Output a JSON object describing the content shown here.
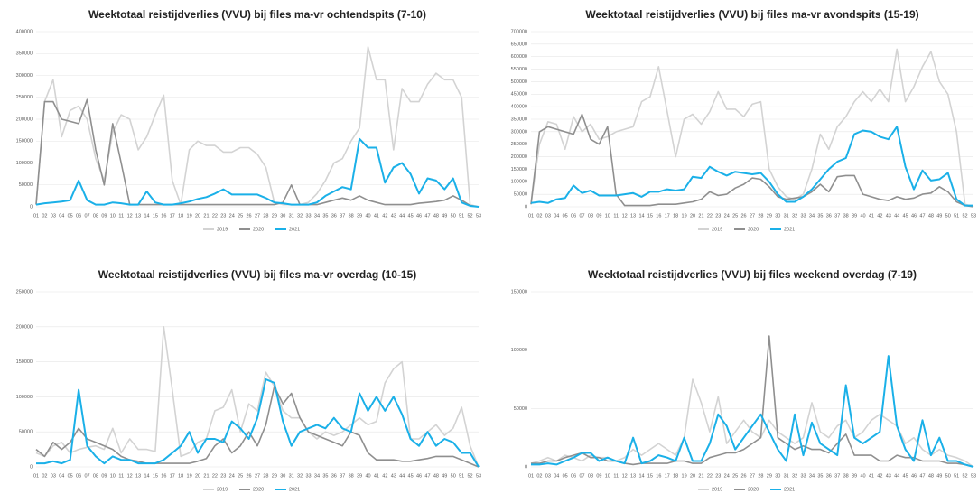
{
  "chart_data": [
    {
      "type": "line",
      "title": "Weektotaal reistijdverlies (VVU) bij files ma-vr ochtendspits (7-10)",
      "categories": [
        "01",
        "02",
        "03",
        "04",
        "05",
        "06",
        "07",
        "08",
        "09",
        "10",
        "11",
        "12",
        "13",
        "14",
        "15",
        "16",
        "17",
        "18",
        "19",
        "20",
        "21",
        "22",
        "23",
        "24",
        "25",
        "26",
        "27",
        "28",
        "29",
        "30",
        "31",
        "32",
        "33",
        "34",
        "35",
        "36",
        "37",
        "38",
        "39",
        "40",
        "41",
        "42",
        "43",
        "44",
        "45",
        "46",
        "47",
        "48",
        "49",
        "50",
        "51",
        "52",
        "53"
      ],
      "series": [
        {
          "name": "2019",
          "color": "#d3d3d3",
          "values": [
            5000,
            240000,
            290000,
            160000,
            220000,
            230000,
            200000,
            110000,
            60000,
            170000,
            210000,
            200000,
            130000,
            160000,
            210000,
            255000,
            60000,
            5000,
            130000,
            150000,
            140000,
            140000,
            125000,
            125000,
            135000,
            135000,
            120000,
            90000,
            10000,
            5000,
            5000,
            5000,
            10000,
            30000,
            60000,
            100000,
            110000,
            150000,
            180000,
            365000,
            290000,
            290000,
            130000,
            270000,
            240000,
            240000,
            280000,
            305000,
            290000,
            290000,
            250000,
            5000,
            0
          ]
        },
        {
          "name": "2020",
          "color": "#8f8f8f",
          "values": [
            5000,
            240000,
            240000,
            200000,
            195000,
            190000,
            245000,
            130000,
            50000,
            190000,
            100000,
            5000,
            5000,
            5000,
            5000,
            5000,
            5000,
            5000,
            5000,
            5000,
            5000,
            5000,
            5000,
            5000,
            5000,
            5000,
            5000,
            5000,
            5000,
            10000,
            50000,
            5000,
            5000,
            5000,
            10000,
            15000,
            20000,
            15000,
            25000,
            15000,
            10000,
            5000,
            5000,
            5000,
            5000,
            8000,
            10000,
            12000,
            15000,
            25000,
            15000,
            3000,
            0
          ]
        },
        {
          "name": "2021",
          "color": "#1ab0e8",
          "values": [
            5000,
            8000,
            10000,
            12000,
            15000,
            60000,
            15000,
            5000,
            5000,
            10000,
            8000,
            5000,
            5000,
            35000,
            10000,
            5000,
            5000,
            8000,
            12000,
            18000,
            22000,
            30000,
            40000,
            28000,
            28000,
            28000,
            28000,
            20000,
            10000,
            8000,
            5000,
            5000,
            5000,
            10000,
            25000,
            35000,
            45000,
            40000,
            155000,
            135000,
            135000,
            55000,
            90000,
            100000,
            75000,
            30000,
            65000,
            60000,
            40000,
            65000,
            10000,
            2000,
            0
          ]
        }
      ],
      "ylim": [
        0,
        400000
      ],
      "yticks": [
        0,
        50000,
        100000,
        150000,
        200000,
        250000,
        300000,
        350000,
        400000
      ]
    },
    {
      "type": "line",
      "title": "Weektotaal reistijdverlies (VVU) bij files ma-vr avondspits (15-19)",
      "categories": [
        "01",
        "02",
        "03",
        "04",
        "05",
        "06",
        "07",
        "08",
        "09",
        "10",
        "11",
        "12",
        "13",
        "14",
        "15",
        "16",
        "17",
        "18",
        "19",
        "20",
        "21",
        "22",
        "23",
        "24",
        "25",
        "26",
        "27",
        "28",
        "29",
        "30",
        "31",
        "32",
        "33",
        "34",
        "35",
        "36",
        "37",
        "38",
        "39",
        "40",
        "41",
        "42",
        "43",
        "44",
        "45",
        "46",
        "47",
        "48",
        "49",
        "50",
        "51",
        "52",
        "53"
      ],
      "series": [
        {
          "name": "2019",
          "color": "#d3d3d3",
          "values": [
            10000,
            250000,
            340000,
            330000,
            230000,
            360000,
            300000,
            330000,
            270000,
            280000,
            300000,
            310000,
            320000,
            420000,
            440000,
            560000,
            380000,
            200000,
            350000,
            370000,
            330000,
            380000,
            460000,
            390000,
            390000,
            360000,
            410000,
            420000,
            150000,
            80000,
            40000,
            30000,
            50000,
            150000,
            290000,
            230000,
            320000,
            360000,
            420000,
            460000,
            420000,
            470000,
            420000,
            630000,
            420000,
            480000,
            560000,
            620000,
            500000,
            450000,
            300000,
            10000,
            0
          ]
        },
        {
          "name": "2020",
          "color": "#8f8f8f",
          "values": [
            10000,
            300000,
            320000,
            310000,
            300000,
            290000,
            370000,
            270000,
            250000,
            320000,
            50000,
            5000,
            5000,
            5000,
            5000,
            10000,
            10000,
            10000,
            15000,
            20000,
            30000,
            60000,
            45000,
            50000,
            75000,
            90000,
            115000,
            110000,
            80000,
            40000,
            30000,
            35000,
            40000,
            60000,
            90000,
            60000,
            120000,
            125000,
            125000,
            50000,
            40000,
            30000,
            25000,
            40000,
            30000,
            35000,
            50000,
            55000,
            80000,
            60000,
            20000,
            5000,
            0
          ]
        },
        {
          "name": "2021",
          "color": "#1ab0e8",
          "values": [
            15000,
            20000,
            15000,
            30000,
            35000,
            85000,
            55000,
            65000,
            45000,
            45000,
            45000,
            50000,
            55000,
            40000,
            60000,
            60000,
            70000,
            65000,
            70000,
            120000,
            115000,
            160000,
            140000,
            125000,
            140000,
            135000,
            130000,
            135000,
            100000,
            50000,
            20000,
            20000,
            40000,
            70000,
            110000,
            150000,
            180000,
            195000,
            290000,
            305000,
            300000,
            280000,
            270000,
            320000,
            160000,
            70000,
            145000,
            105000,
            110000,
            135000,
            30000,
            5000,
            5000
          ]
        }
      ],
      "ylim": [
        0,
        700000
      ],
      "yticks": [
        0,
        50000,
        100000,
        150000,
        200000,
        250000,
        300000,
        350000,
        400000,
        450000,
        500000,
        550000,
        600000,
        650000,
        700000
      ]
    },
    {
      "type": "line",
      "title": "Weektotaal reistijdverlies (VVU) bij files ma-vr overdag (10-15)",
      "categories": [
        "01",
        "02",
        "03",
        "04",
        "05",
        "06",
        "07",
        "08",
        "09",
        "10",
        "11",
        "12",
        "13",
        "14",
        "15",
        "16",
        "17",
        "18",
        "19",
        "20",
        "21",
        "22",
        "23",
        "24",
        "25",
        "26",
        "27",
        "28",
        "29",
        "30",
        "31",
        "32",
        "33",
        "34",
        "35",
        "36",
        "37",
        "38",
        "39",
        "40",
        "41",
        "42",
        "43",
        "44",
        "45",
        "46",
        "47",
        "48",
        "49",
        "50",
        "51",
        "52",
        "53"
      ],
      "series": [
        {
          "name": "2019",
          "color": "#d3d3d3",
          "values": [
            20000,
            15000,
            30000,
            35000,
            20000,
            25000,
            28000,
            30000,
            25000,
            55000,
            20000,
            40000,
            25000,
            25000,
            22000,
            200000,
            110000,
            15000,
            20000,
            35000,
            40000,
            80000,
            85000,
            110000,
            50000,
            90000,
            80000,
            135000,
            115000,
            80000,
            70000,
            70000,
            50000,
            40000,
            50000,
            45000,
            50000,
            60000,
            70000,
            60000,
            65000,
            120000,
            140000,
            150000,
            40000,
            40000,
            50000,
            60000,
            45000,
            55000,
            85000,
            30000,
            0
          ]
        },
        {
          "name": "2020",
          "color": "#8f8f8f",
          "values": [
            25000,
            15000,
            35000,
            25000,
            35000,
            55000,
            40000,
            35000,
            30000,
            25000,
            15000,
            10000,
            8000,
            5000,
            5000,
            5000,
            5000,
            5000,
            5000,
            8000,
            12000,
            30000,
            40000,
            20000,
            30000,
            50000,
            30000,
            60000,
            115000,
            90000,
            105000,
            70000,
            50000,
            45000,
            40000,
            35000,
            30000,
            50000,
            45000,
            20000,
            10000,
            10000,
            10000,
            8000,
            8000,
            10000,
            12000,
            15000,
            15000,
            15000,
            10000,
            5000,
            0
          ]
        },
        {
          "name": "2021",
          "color": "#1ab0e8",
          "values": [
            5000,
            5000,
            8000,
            5000,
            10000,
            110000,
            30000,
            15000,
            5000,
            15000,
            10000,
            10000,
            5000,
            5000,
            5000,
            10000,
            20000,
            30000,
            50000,
            20000,
            40000,
            40000,
            35000,
            65000,
            55000,
            40000,
            70000,
            125000,
            120000,
            65000,
            30000,
            50000,
            55000,
            60000,
            55000,
            70000,
            55000,
            50000,
            105000,
            80000,
            100000,
            80000,
            100000,
            75000,
            40000,
            30000,
            50000,
            30000,
            40000,
            35000,
            20000,
            20000,
            0
          ]
        }
      ],
      "ylim": [
        0,
        250000
      ],
      "yticks": [
        0,
        50000,
        100000,
        150000,
        200000,
        250000
      ]
    },
    {
      "type": "line",
      "title": "Weektotaal reistijdverlies (VVU) bij files weekend overdag (7-19)",
      "categories": [
        "01",
        "02",
        "03",
        "04",
        "05",
        "06",
        "07",
        "08",
        "09",
        "10",
        "11",
        "12",
        "13",
        "14",
        "15",
        "16",
        "17",
        "18",
        "19",
        "20",
        "21",
        "22",
        "23",
        "24",
        "25",
        "26",
        "27",
        "28",
        "29",
        "30",
        "31",
        "32",
        "33",
        "34",
        "35",
        "36",
        "37",
        "38",
        "39",
        "40",
        "41",
        "42",
        "43",
        "44",
        "45",
        "46",
        "47",
        "48",
        "49",
        "50",
        "51",
        "52",
        "53"
      ],
      "series": [
        {
          "name": "2019",
          "color": "#d3d3d3",
          "values": [
            3000,
            5000,
            8000,
            5000,
            10000,
            8000,
            5000,
            10000,
            8000,
            8000,
            5000,
            8000,
            15000,
            10000,
            15000,
            20000,
            15000,
            10000,
            25000,
            75000,
            55000,
            30000,
            60000,
            20000,
            30000,
            40000,
            30000,
            25000,
            40000,
            30000,
            25000,
            20000,
            25000,
            55000,
            30000,
            25000,
            35000,
            40000,
            25000,
            30000,
            40000,
            45000,
            40000,
            35000,
            20000,
            25000,
            15000,
            10000,
            15000,
            10000,
            8000,
            5000,
            0
          ]
        },
        {
          "name": "2020",
          "color": "#8f8f8f",
          "values": [
            3000,
            3000,
            5000,
            5000,
            8000,
            10000,
            12000,
            8000,
            8000,
            5000,
            5000,
            3000,
            2000,
            3000,
            3000,
            3000,
            3000,
            5000,
            5000,
            3000,
            3000,
            8000,
            10000,
            12000,
            12000,
            15000,
            20000,
            25000,
            112000,
            25000,
            20000,
            15000,
            18000,
            15000,
            15000,
            12000,
            20000,
            28000,
            10000,
            10000,
            10000,
            5000,
            5000,
            10000,
            8000,
            8000,
            5000,
            5000,
            5000,
            3000,
            3000,
            2000,
            0
          ]
        },
        {
          "name": "2021",
          "color": "#1ab0e8",
          "values": [
            2000,
            2000,
            3000,
            2000,
            5000,
            8000,
            12000,
            12000,
            5000,
            8000,
            5000,
            3000,
            25000,
            3000,
            5000,
            10000,
            8000,
            5000,
            25000,
            5000,
            5000,
            20000,
            45000,
            35000,
            15000,
            25000,
            35000,
            45000,
            30000,
            15000,
            5000,
            45000,
            10000,
            38000,
            20000,
            15000,
            10000,
            70000,
            25000,
            20000,
            25000,
            30000,
            95000,
            35000,
            15000,
            5000,
            40000,
            10000,
            25000,
            5000,
            5000,
            2000,
            0
          ]
        }
      ],
      "ylim": [
        0,
        150000
      ],
      "yticks": [
        0,
        50000,
        100000,
        150000
      ]
    }
  ]
}
